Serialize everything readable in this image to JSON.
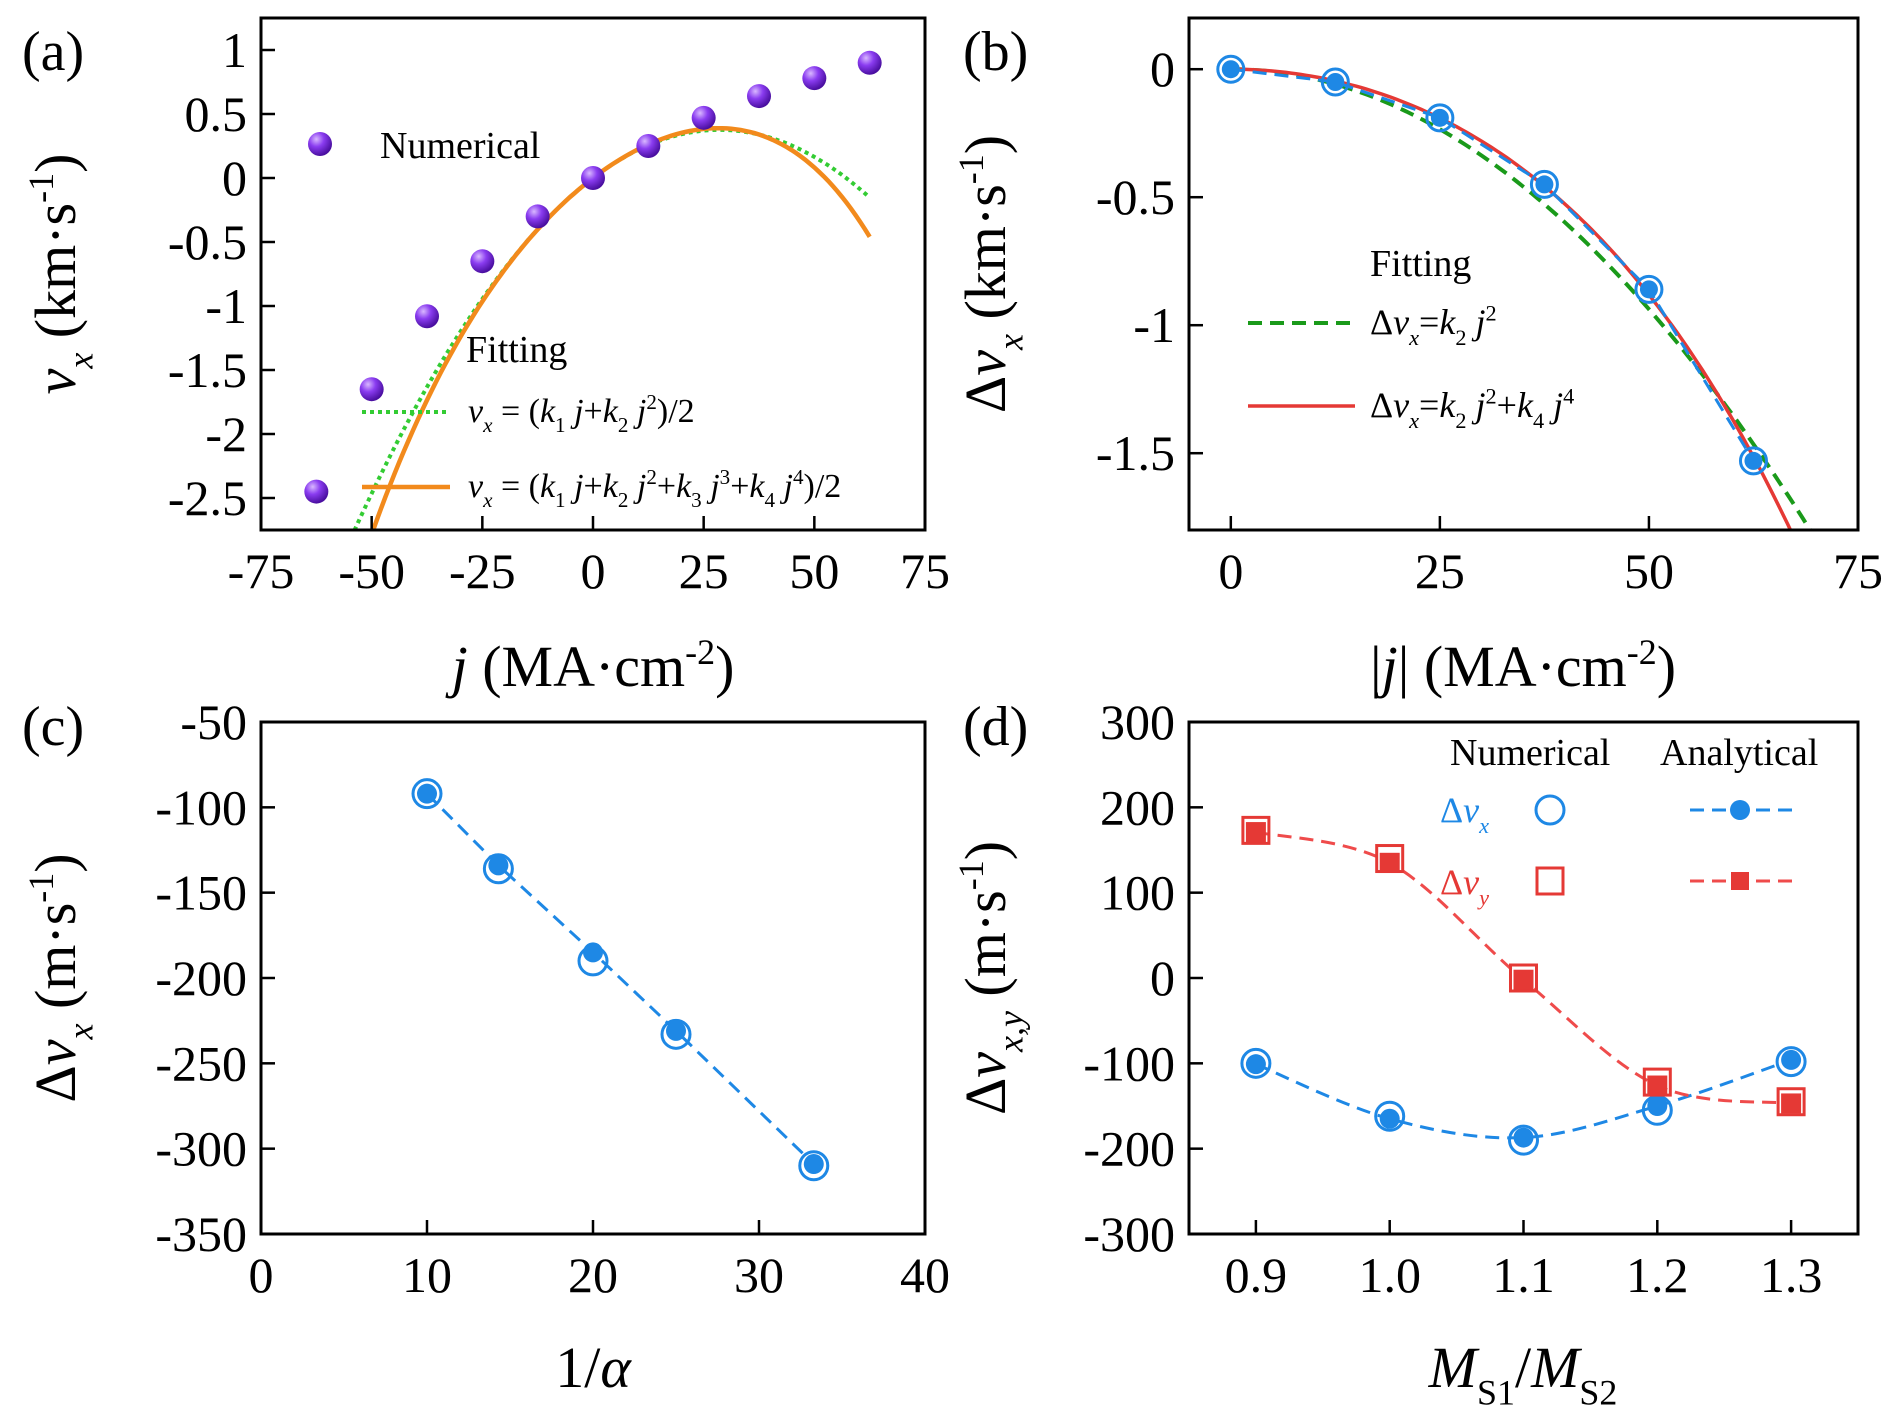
{
  "colors": {
    "purple": "#7a2be0",
    "blue": "#1e88e5",
    "red": "#e53935",
    "green": "#33cc33",
    "darkgreen": "#1a9a1a",
    "orange": "#f28a1c",
    "salmon": "#ef4b4b"
  },
  "chart_data": [
    {
      "panel": "(a)",
      "type": "scatter",
      "xlabel": "j (MA·cm-2)",
      "ylabel": "vx (km·s-1)",
      "xlim": [
        -75,
        75
      ],
      "ylim": [
        -2.75,
        1.25
      ],
      "xticks": [
        "-75",
        "-50",
        "-25",
        "0",
        "25",
        "50",
        "75"
      ],
      "yticks": [
        "1",
        "0.5",
        "0",
        "-0.5",
        "-1",
        "-1.5",
        "-2",
        "-2.5"
      ],
      "legend": {
        "numerical": "Numerical",
        "fitting": "Fitting",
        "fit1": "vx = (k1 j+k2 j2)/2",
        "fit2": "vx = (k1 j+k2 j2+k3 j3+k4 j4)/2"
      },
      "series": [
        {
          "name": "Numerical",
          "x": [
            -62.5,
            -50,
            -37.5,
            -25,
            -12.5,
            0,
            12.5,
            25,
            37.5,
            50,
            62.5
          ],
          "y": [
            -2.45,
            -1.65,
            -1.08,
            -0.65,
            -0.3,
            0,
            0.25,
            0.47,
            0.64,
            0.78,
            0.9
          ]
        }
      ],
      "fits": [
        {
          "name": "vx = (k1 j+k2 j2)/2",
          "k1": 0.0263,
          "k2": -0.00046,
          "style": "dotted"
        },
        {
          "name": "vx = (k1 j+k2 j2+k3 j3+k4 j4)/2",
          "k1": 0.0264,
          "k2": -0.00044,
          "k3": 9e-07,
          "k4": -4e-08,
          "style": "solid"
        }
      ]
    },
    {
      "panel": "(b)",
      "type": "scatter",
      "xlabel": "|j| (MA·cm-2)",
      "ylabel": "Δvx (km·s-1)",
      "xlim": [
        -5,
        75
      ],
      "ylim": [
        -1.8,
        0.2
      ],
      "xticks": [
        "0",
        "25",
        "50",
        "75"
      ],
      "yticks": [
        "0",
        "-0.5",
        "-1",
        "-1.5"
      ],
      "legend": {
        "fitting": "Fitting",
        "fit1": "Δvx = k2 j2",
        "fit2": "Δvx = k2 j2+k4 j4"
      },
      "series": [
        {
          "name": "Numerical",
          "x": [
            0,
            12.5,
            25,
            37.5,
            50,
            62.5
          ],
          "y": [
            0,
            -0.05,
            -0.19,
            -0.45,
            -0.86,
            -1.53
          ]
        }
      ],
      "fits": [
        {
          "name": "Δvx = k2 j2",
          "k2": -0.000375,
          "style": "dashed"
        },
        {
          "name": "Δvx = k2 j2+k4 j4",
          "k2": -0.00029,
          "k4": -2.5e-08,
          "style": "solid"
        }
      ]
    },
    {
      "panel": "(c)",
      "type": "scatter",
      "xlabel": "1/α",
      "ylabel": "Δvx (m·s-1)",
      "xlim": [
        0,
        40
      ],
      "ylim": [
        -350,
        -50
      ],
      "xticks": [
        "0",
        "10",
        "20",
        "30",
        "40"
      ],
      "yticks": [
        "-50",
        "-100",
        "-150",
        "-200",
        "-250",
        "-300",
        "-350"
      ],
      "series": [
        {
          "name": "Numerical",
          "x": [
            10,
            14.3,
            20,
            25,
            33.3
          ],
          "y": [
            -92,
            -136,
            -190,
            -233,
            -310
          ]
        },
        {
          "name": "Analytical",
          "x": [
            10,
            14.3,
            20,
            25,
            33.3
          ],
          "y": [
            -92,
            -134,
            -185,
            -231,
            -309
          ]
        }
      ]
    },
    {
      "panel": "(d)",
      "type": "scatter",
      "xlabel": "MS1/MS2",
      "ylabel": "Δvx,y (m·s-1)",
      "xlim": [
        0.85,
        1.35
      ],
      "ylim": [
        -300,
        300
      ],
      "xticks": [
        "0.9",
        "1.0",
        "1.1",
        "1.2",
        "1.3"
      ],
      "yticks": [
        "300",
        "200",
        "100",
        "0",
        "-100",
        "-200",
        "-300"
      ],
      "legend": {
        "col1": "Numerical",
        "col2": "Analytical",
        "row1": "Δvx",
        "row2": "Δvy"
      },
      "categories": [
        "0.9",
        "1.0",
        "1.1",
        "1.2",
        "1.3"
      ],
      "series": [
        {
          "name": "Δvx Numerical",
          "x": [
            0.9,
            1.0,
            1.1,
            1.2,
            1.3
          ],
          "y": [
            -100,
            -162,
            -190,
            -155,
            -98
          ]
        },
        {
          "name": "Δvx Analytical",
          "x": [
            0.9,
            1.0,
            1.1,
            1.2,
            1.3
          ],
          "y": [
            -101,
            -165,
            -187,
            -150,
            -96
          ]
        },
        {
          "name": "Δvy Numerical",
          "x": [
            0.9,
            1.0,
            1.1,
            1.2,
            1.3
          ],
          "y": [
            173,
            140,
            0,
            -122,
            -145
          ]
        },
        {
          "name": "Δvy Analytical",
          "x": [
            0.9,
            1.0,
            1.1,
            1.2,
            1.3
          ],
          "y": [
            171,
            135,
            -2,
            -126,
            -147
          ]
        }
      ]
    }
  ],
  "panel_labels": [
    "(a)",
    "(b)",
    "(c)",
    "(d)"
  ]
}
